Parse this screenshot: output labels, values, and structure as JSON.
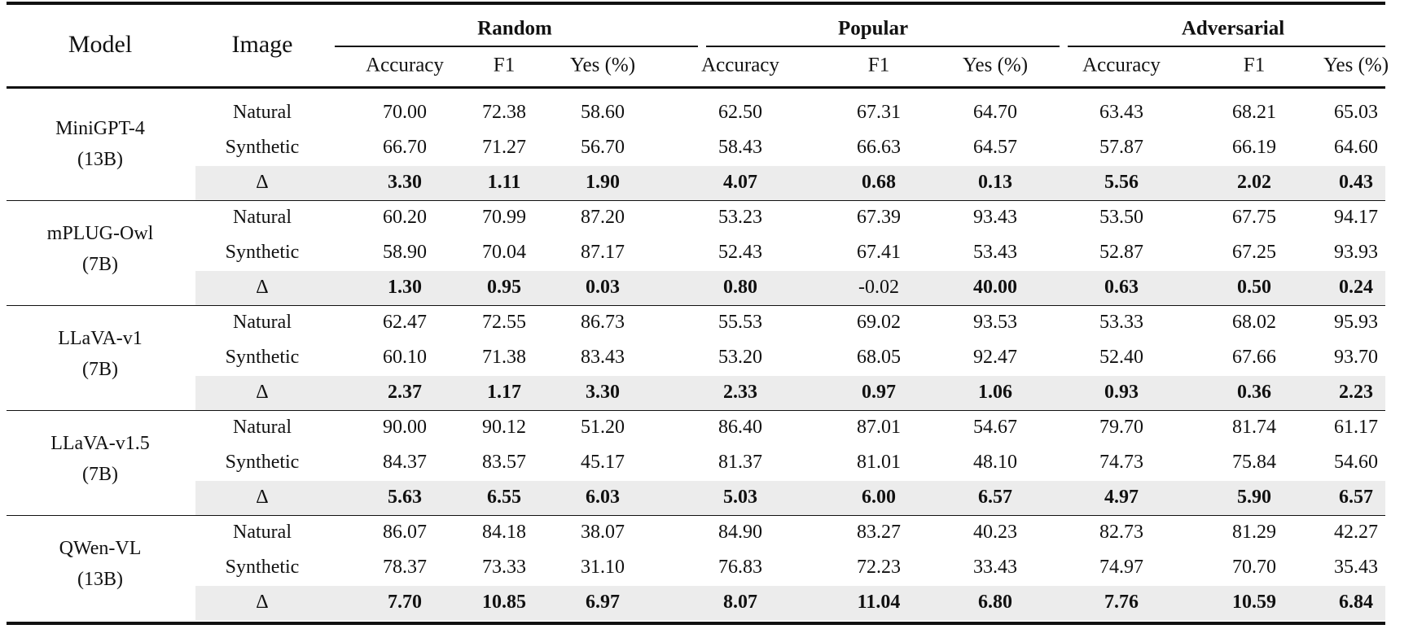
{
  "header": {
    "model": "Model",
    "image": "Image",
    "groups": [
      "Random",
      "Popular",
      "Adversarial"
    ],
    "metrics": [
      "Accuracy",
      "F1",
      "Yes (%)",
      "Accuracy",
      "F1",
      "Yes (%)",
      "Accuracy",
      "F1",
      "Yes (%)"
    ]
  },
  "models": [
    {
      "name": "MiniGPT-4",
      "size": "(13B)",
      "rows": [
        {
          "image": "Natural",
          "values": [
            "70.00",
            "72.38",
            "58.60",
            "62.50",
            "67.31",
            "64.70",
            "63.43",
            "68.21",
            "65.03"
          ]
        },
        {
          "image": "Synthetic",
          "values": [
            "66.70",
            "71.27",
            "56.70",
            "58.43",
            "66.63",
            "64.57",
            "57.87",
            "66.19",
            "64.60"
          ]
        },
        {
          "image": "Δ",
          "values": [
            "3.30",
            "1.11",
            "1.90",
            "4.07",
            "0.68",
            "0.13",
            "5.56",
            "2.02",
            "0.43"
          ],
          "plain": []
        }
      ]
    },
    {
      "name": "mPLUG-Owl",
      "size": "(7B)",
      "rows": [
        {
          "image": "Natural",
          "values": [
            "60.20",
            "70.99",
            "87.20",
            "53.23",
            "67.39",
            "93.43",
            "53.50",
            "67.75",
            "94.17"
          ]
        },
        {
          "image": "Synthetic",
          "values": [
            "58.90",
            "70.04",
            "87.17",
            "52.43",
            "67.41",
            "53.43",
            "52.87",
            "67.25",
            "93.93"
          ]
        },
        {
          "image": "Δ",
          "values": [
            "1.30",
            "0.95",
            "0.03",
            "0.80",
            "-0.02",
            "40.00",
            "0.63",
            "0.50",
            "0.24"
          ],
          "plain": [
            4
          ]
        }
      ]
    },
    {
      "name": "LLaVA-v1",
      "size": "(7B)",
      "rows": [
        {
          "image": "Natural",
          "values": [
            "62.47",
            "72.55",
            "86.73",
            "55.53",
            "69.02",
            "93.53",
            "53.33",
            "68.02",
            "95.93"
          ]
        },
        {
          "image": "Synthetic",
          "values": [
            "60.10",
            "71.38",
            "83.43",
            "53.20",
            "68.05",
            "92.47",
            "52.40",
            "67.66",
            "93.70"
          ]
        },
        {
          "image": "Δ",
          "values": [
            "2.37",
            "1.17",
            "3.30",
            "2.33",
            "0.97",
            "1.06",
            "0.93",
            "0.36",
            "2.23"
          ],
          "plain": []
        }
      ]
    },
    {
      "name": "LLaVA-v1.5",
      "size": "(7B)",
      "rows": [
        {
          "image": "Natural",
          "values": [
            "90.00",
            "90.12",
            "51.20",
            "86.40",
            "87.01",
            "54.67",
            "79.70",
            "81.74",
            "61.17"
          ]
        },
        {
          "image": "Synthetic",
          "values": [
            "84.37",
            "83.57",
            "45.17",
            "81.37",
            "81.01",
            "48.10",
            "74.73",
            "75.84",
            "54.60"
          ]
        },
        {
          "image": "Δ",
          "values": [
            "5.63",
            "6.55",
            "6.03",
            "5.03",
            "6.00",
            "6.57",
            "4.97",
            "5.90",
            "6.57"
          ],
          "plain": []
        }
      ]
    },
    {
      "name": "QWen-VL",
      "size": "(13B)",
      "rows": [
        {
          "image": "Natural",
          "values": [
            "86.07",
            "84.18",
            "38.07",
            "84.90",
            "83.27",
            "40.23",
            "82.73",
            "81.29",
            "42.27"
          ]
        },
        {
          "image": "Synthetic",
          "values": [
            "78.37",
            "73.33",
            "31.10",
            "76.83",
            "72.23",
            "33.43",
            "74.97",
            "70.70",
            "35.43"
          ]
        },
        {
          "image": "Δ",
          "values": [
            "7.70",
            "10.85",
            "6.97",
            "8.07",
            "11.04",
            "6.80",
            "7.76",
            "10.59",
            "6.84"
          ],
          "plain": []
        }
      ]
    }
  ]
}
